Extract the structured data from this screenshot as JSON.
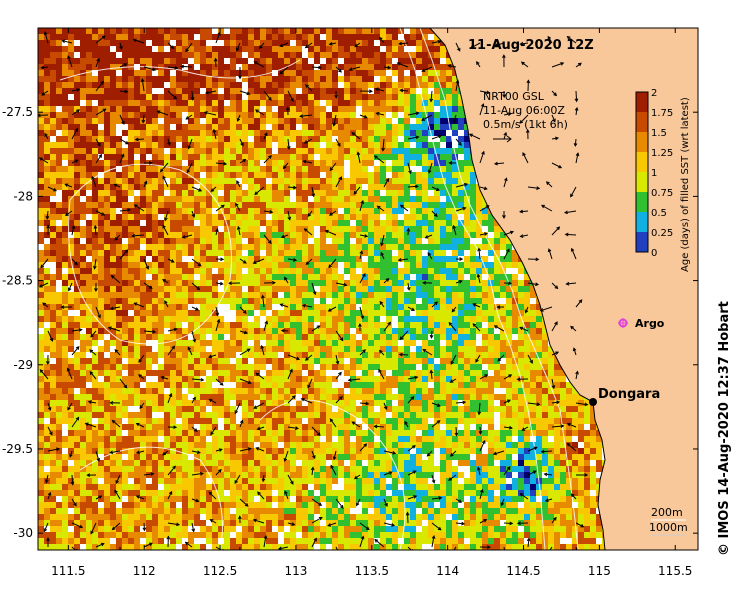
{
  "map": {
    "title": "11-Aug-2020 12Z",
    "lon_ticks": [
      "111.5",
      "112",
      "112.5",
      "113",
      "113.5",
      "114",
      "114.5",
      "115",
      "115.5"
    ],
    "lon_values": [
      111.5,
      112,
      112.5,
      113,
      113.5,
      114,
      114.5,
      115,
      115.5
    ],
    "lat_ticks": [
      "-27.5",
      "-28",
      "-28.5",
      "-29",
      "-29.5",
      "-30"
    ],
    "lat_values": [
      -27.5,
      -28,
      -28.5,
      -29,
      -29.5,
      -30
    ],
    "lon_range": [
      111.3,
      115.65
    ],
    "lat_range": [
      -27.0,
      -30.1
    ],
    "current_info": {
      "line1": "NRT00 GSL",
      "line2": "11-Aug 06:00Z",
      "line3": "0.5m/s (1kt 6h)"
    },
    "place": {
      "name": "Dongara",
      "lon": 114.93,
      "lat": -29.25
    },
    "argo": {
      "label": "Argo",
      "lon": 115.1,
      "lat": -28.8,
      "color": "#e040e0"
    },
    "depth_legend": {
      "line1": "200m",
      "line2": "1000m"
    },
    "credit": "© IMOS 14-Aug-2020 12:37 Hobart",
    "land_color": "#f9c89a",
    "colorbar": {
      "title": "Age (days) of filled SST (wrt latest)",
      "labels": [
        "2",
        "1.75",
        "1.5",
        "1.25",
        "1",
        "0.75",
        "0.5",
        "0.25",
        "0"
      ],
      "colors": [
        "#a01e00",
        "#c84a00",
        "#e88a00",
        "#f8c800",
        "#d8e800",
        "#30c030",
        "#10b0e0",
        "#2040c0",
        "#000070"
      ]
    }
  }
}
